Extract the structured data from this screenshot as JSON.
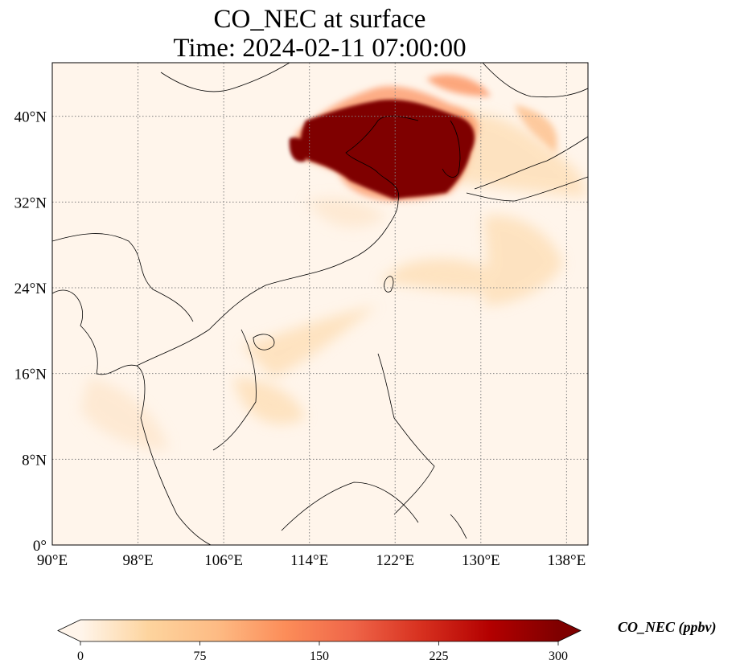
{
  "title": {
    "line1": "CO_NEC at surface",
    "line2": "Time: 2024-02-11 07:00:00"
  },
  "map": {
    "lon_range": [
      90,
      140
    ],
    "lat_range": [
      0,
      45
    ],
    "lon_ticks": [
      {
        "value": 90,
        "label": "90°E"
      },
      {
        "value": 98,
        "label": "98°E"
      },
      {
        "value": 106,
        "label": "106°E"
      },
      {
        "value": 114,
        "label": "114°E"
      },
      {
        "value": 122,
        "label": "122°E"
      },
      {
        "value": 130,
        "label": "130°E"
      },
      {
        "value": 138,
        "label": "138°E"
      }
    ],
    "lat_ticks": [
      {
        "value": 0,
        "label": "0°"
      },
      {
        "value": 8,
        "label": "8°N"
      },
      {
        "value": 16,
        "label": "16°N"
      },
      {
        "value": 24,
        "label": "24°N"
      },
      {
        "value": 32,
        "label": "32°N"
      },
      {
        "value": 40,
        "label": "40°N"
      }
    ],
    "gridlines": true,
    "background_color": "#fff5eb",
    "plume_color": "#7f0000"
  },
  "colorbar": {
    "label": "CO_NEC (ppbv)",
    "min": 0,
    "max": 300,
    "extend": "both",
    "ticks": [
      {
        "value": 0,
        "label": "0"
      },
      {
        "value": 75,
        "label": "75"
      },
      {
        "value": 150,
        "label": "150"
      },
      {
        "value": 225,
        "label": "225"
      },
      {
        "value": 300,
        "label": "300"
      }
    ],
    "colors": [
      "#fff5eb",
      "#fdd49e",
      "#fdbb84",
      "#fc8d59",
      "#ef6548",
      "#d7301f",
      "#b30000",
      "#7f0000"
    ]
  }
}
